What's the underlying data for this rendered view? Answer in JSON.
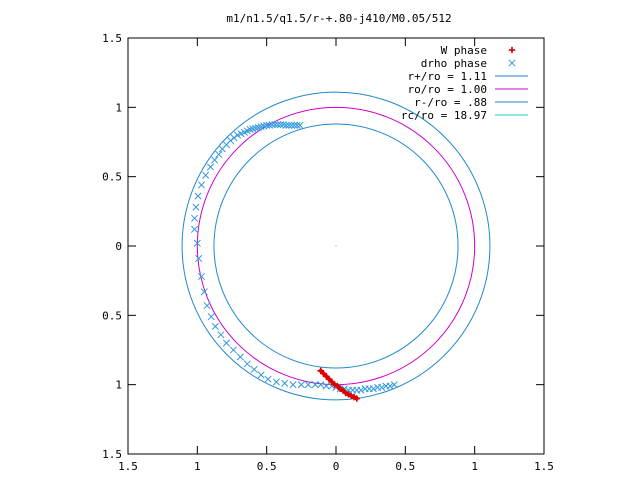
{
  "chart_data": {
    "type": "scatter",
    "title": "m1/n1.5/q1.5/r-+.80-j410/M0.05/512",
    "xlim": [
      -1.5,
      1.5
    ],
    "ylim": [
      -1.5,
      1.5
    ],
    "x_tick_values": [
      -1.5,
      -1,
      -0.5,
      0,
      0.5,
      1,
      1.5
    ],
    "x_tick_labels": [
      "1.5",
      "1",
      "0.5",
      "0",
      "0.5",
      "1",
      "1.5"
    ],
    "y_tick_values": [
      1.5,
      1,
      0.5,
      0,
      -0.5,
      -1,
      -1.5
    ],
    "y_tick_labels": [
      "1.5",
      "1",
      "0.5",
      "0",
      "0.5",
      "1",
      "1.5"
    ],
    "legend_position": "top-right",
    "grid": false,
    "legend": [
      {
        "label": "W phase",
        "kind": "points",
        "marker": "+",
        "color": "#e00000"
      },
      {
        "label": "drho phase",
        "kind": "points",
        "marker": "x",
        "color": "#3399dd"
      },
      {
        "label": "r+/ro = 1.11",
        "kind": "circle",
        "radius": 1.11,
        "color": "#2288cc"
      },
      {
        "label": "ro/ro = 1.00",
        "kind": "circle",
        "radius": 1.0,
        "color": "#cc00cc"
      },
      {
        "label": "r-/ro = .88",
        "kind": "circle",
        "radius": 0.88,
        "color": "#2288cc"
      },
      {
        "label": "rc/ro = 18.97",
        "kind": "circle",
        "radius": 18.97,
        "color": "#22cccc"
      }
    ],
    "series": [
      {
        "name": "W phase",
        "color": "#e00000",
        "marker": "+",
        "x": [
          -0.11,
          -0.09,
          -0.07,
          -0.05,
          -0.03,
          -0.01,
          0.01,
          0.03,
          0.05,
          0.07,
          0.09,
          0.11,
          0.13,
          0.15
        ],
        "y": [
          -0.9,
          -0.92,
          -0.94,
          -0.96,
          -0.98,
          -1.0,
          -1.01,
          -1.03,
          -1.04,
          -1.06,
          -1.07,
          -1.08,
          -1.09,
          -1.1
        ]
      },
      {
        "name": "drho phase",
        "color": "#3399dd",
        "marker": "x",
        "x": [
          -1.02,
          -1.02,
          -1.01,
          -0.995,
          -0.97,
          -0.94,
          -0.905,
          -0.875,
          -0.845,
          -0.82,
          -0.79,
          -0.76,
          -0.735,
          -0.71,
          -0.685,
          -0.66,
          -0.64,
          -0.62,
          -0.6,
          -0.58,
          -0.56,
          -0.54,
          -0.52,
          -0.5,
          -0.48,
          -0.46,
          -0.44,
          -0.42,
          -0.4,
          -0.38,
          -0.36,
          -0.34,
          -0.32,
          -0.3,
          -0.28,
          -0.26,
          -1.0,
          -0.99,
          -0.97,
          -0.95,
          -0.93,
          -0.9,
          -0.87,
          -0.83,
          -0.79,
          -0.74,
          -0.69,
          -0.64,
          -0.59,
          -0.54,
          -0.49,
          -0.43,
          -0.37,
          -0.31,
          -0.25,
          -0.2,
          -0.15,
          -0.11,
          -0.07,
          -0.03,
          0.0,
          0.03,
          0.06,
          0.09,
          0.12,
          0.15,
          0.18,
          0.21,
          0.24,
          0.27,
          0.3,
          0.33,
          0.36,
          0.39,
          0.42
        ],
        "y": [
          0.2,
          0.12,
          0.28,
          0.36,
          0.44,
          0.51,
          0.57,
          0.62,
          0.66,
          0.7,
          0.73,
          0.76,
          0.78,
          0.8,
          0.81,
          0.82,
          0.83,
          0.84,
          0.845,
          0.85,
          0.855,
          0.86,
          0.865,
          0.87,
          0.87,
          0.875,
          0.875,
          0.875,
          0.875,
          0.875,
          0.87,
          0.87,
          0.87,
          0.87,
          0.87,
          0.87,
          0.02,
          -0.09,
          -0.22,
          -0.33,
          -0.43,
          -0.51,
          -0.58,
          -0.64,
          -0.7,
          -0.75,
          -0.8,
          -0.85,
          -0.89,
          -0.93,
          -0.96,
          -0.98,
          -0.99,
          -1.0,
          -1.0,
          -1.0,
          -1.0,
          -1.0,
          -1.01,
          -1.01,
          -1.02,
          -1.03,
          -1.03,
          -1.04,
          -1.04,
          -1.04,
          -1.04,
          -1.03,
          -1.03,
          -1.03,
          -1.02,
          -1.02,
          -1.01,
          -1.01,
          -1.0
        ]
      }
    ]
  }
}
